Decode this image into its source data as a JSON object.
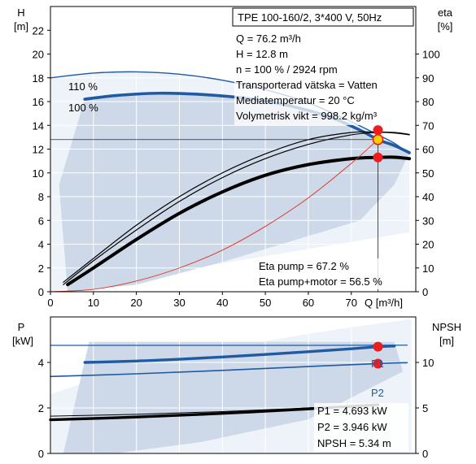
{
  "chart_data": [
    {
      "type": "line",
      "x_unit": "Q [m³/h]",
      "y_left_label": "H",
      "y_left_unit": "[m]",
      "y_right_label": "eta",
      "y_right_unit": "[%]",
      "xlim": [
        0,
        85
      ],
      "ylim_left": [
        0,
        24
      ],
      "ylim_right": [
        0,
        120
      ],
      "x_ticks": [
        0,
        10,
        20,
        30,
        40,
        50,
        60,
        70
      ],
      "y_left_ticks": [
        0,
        2,
        4,
        6,
        8,
        10,
        12,
        14,
        16,
        18,
        20,
        22
      ],
      "y_right_ticks": [
        0,
        10,
        20,
        30,
        40,
        50,
        60,
        70,
        80,
        90,
        100
      ],
      "grid": true,
      "info_box": [
        "TPE 100-160/2, 3*400 V, 50Hz"
      ],
      "info_lines": [
        "Q = 76.2 m³/h",
        "H = 12.8 m",
        "n = 100 % / 2924 rpm",
        "Transporterad vätska = Vatten",
        "Mediatemperatur = 20 °C",
        "Volymetrisk vikt = 998.2 kg/m³"
      ],
      "eta_lines": [
        "Eta pump = 67.2 %",
        "Eta pump+motor = 56.5 %"
      ],
      "head_curve_labels": [
        "110 %",
        "100 %"
      ],
      "operating_point": {
        "Q": 76.2,
        "H": 12.8,
        "eta_pump": 67.2,
        "eta_pump_motor": 56.5
      },
      "series": [
        {
          "axis": "left",
          "style": "head-outline",
          "x": [
            0,
            10,
            20,
            30,
            40,
            50,
            60,
            70,
            76.2,
            80,
            83.5
          ],
          "y": [
            18.0,
            18.4,
            18.5,
            18.3,
            17.8,
            17.0,
            15.9,
            14.3,
            13.2,
            12.5,
            11.6
          ]
        },
        {
          "axis": "left",
          "style": "head-main",
          "x": [
            8,
            15,
            25,
            35,
            45,
            55,
            65,
            72,
            76.2,
            80,
            83.5
          ],
          "y": [
            16.2,
            16.5,
            16.7,
            16.6,
            16.3,
            15.7,
            14.7,
            13.6,
            12.8,
            12.3,
            11.7
          ]
        },
        {
          "axis": "right",
          "style": "eta-thin",
          "x": [
            3,
            10,
            20,
            30,
            40,
            50,
            60,
            70,
            76.2,
            80,
            83.5
          ],
          "y": [
            4,
            14,
            28,
            40,
            50,
            58,
            64,
            67,
            67.2,
            67,
            66.2
          ]
        },
        {
          "axis": "right",
          "style": "eta-thin",
          "x": [
            3,
            10,
            20,
            30,
            40,
            50,
            60,
            70,
            76.2,
            80,
            83.5
          ],
          "y": [
            3,
            13,
            26,
            38,
            48,
            56,
            62,
            66,
            67,
            66.8,
            66
          ]
        },
        {
          "axis": "right",
          "style": "eta-thick",
          "x": [
            4,
            10,
            20,
            30,
            40,
            50,
            60,
            70,
            76.2,
            80,
            83.5
          ],
          "y": [
            3,
            10,
            22,
            33,
            42,
            49,
            53.5,
            56,
            56.5,
            56.6,
            56
          ]
        },
        {
          "axis": "left",
          "style": "system-red",
          "x": [
            0,
            10,
            20,
            30,
            40,
            50,
            60,
            70,
            76.2
          ],
          "y": [
            0,
            0.2,
            0.9,
            2.0,
            3.5,
            5.5,
            7.9,
            10.8,
            12.8
          ]
        }
      ]
    },
    {
      "type": "line",
      "x_unit": "",
      "y_left_label": "P",
      "y_left_unit": "[kW]",
      "y_right_label": "NPSH",
      "y_right_unit": "[m]",
      "xlim": [
        0,
        85
      ],
      "ylim_left": [
        0,
        6
      ],
      "ylim_right": [
        0,
        15
      ],
      "y_left_ticks": [
        0,
        2,
        4
      ],
      "y_right_ticks": [
        0,
        5,
        10
      ],
      "grid": true,
      "value_lines": [
        "P1 = 4.693 kW",
        "P2 = 3.946 kW",
        "NPSH = 5.34 m"
      ],
      "curve_labels": [
        "P1",
        "P2"
      ],
      "series": [
        {
          "name": "P1",
          "axis": "left",
          "style": "p1-main",
          "x": [
            8,
            20,
            30,
            40,
            50,
            60,
            70,
            76.2,
            80
          ],
          "y": [
            4.0,
            4.06,
            4.14,
            4.24,
            4.35,
            4.47,
            4.6,
            4.69,
            4.72
          ]
        },
        {
          "axis": "left",
          "style": "p1-outline",
          "x": [
            0,
            20,
            40,
            60,
            83
          ],
          "y": [
            4.75,
            4.75,
            4.75,
            4.75,
            4.76
          ]
        },
        {
          "name": "P2",
          "axis": "left",
          "style": "p2-main",
          "x": [
            0,
            20,
            40,
            60,
            76.2,
            83
          ],
          "y": [
            3.38,
            3.5,
            3.65,
            3.82,
            3.95,
            3.99
          ]
        },
        {
          "axis": "right",
          "style": "npsh",
          "x": [
            0,
            20,
            40,
            60,
            76.2
          ],
          "y": [
            3.7,
            4.0,
            4.4,
            4.9,
            5.34
          ]
        },
        {
          "axis": "right",
          "style": "npsh-thin",
          "x": [
            0,
            20,
            40,
            60,
            76.2
          ],
          "y": [
            4.1,
            4.3,
            4.6,
            5.0,
            5.34
          ]
        }
      ]
    }
  ]
}
